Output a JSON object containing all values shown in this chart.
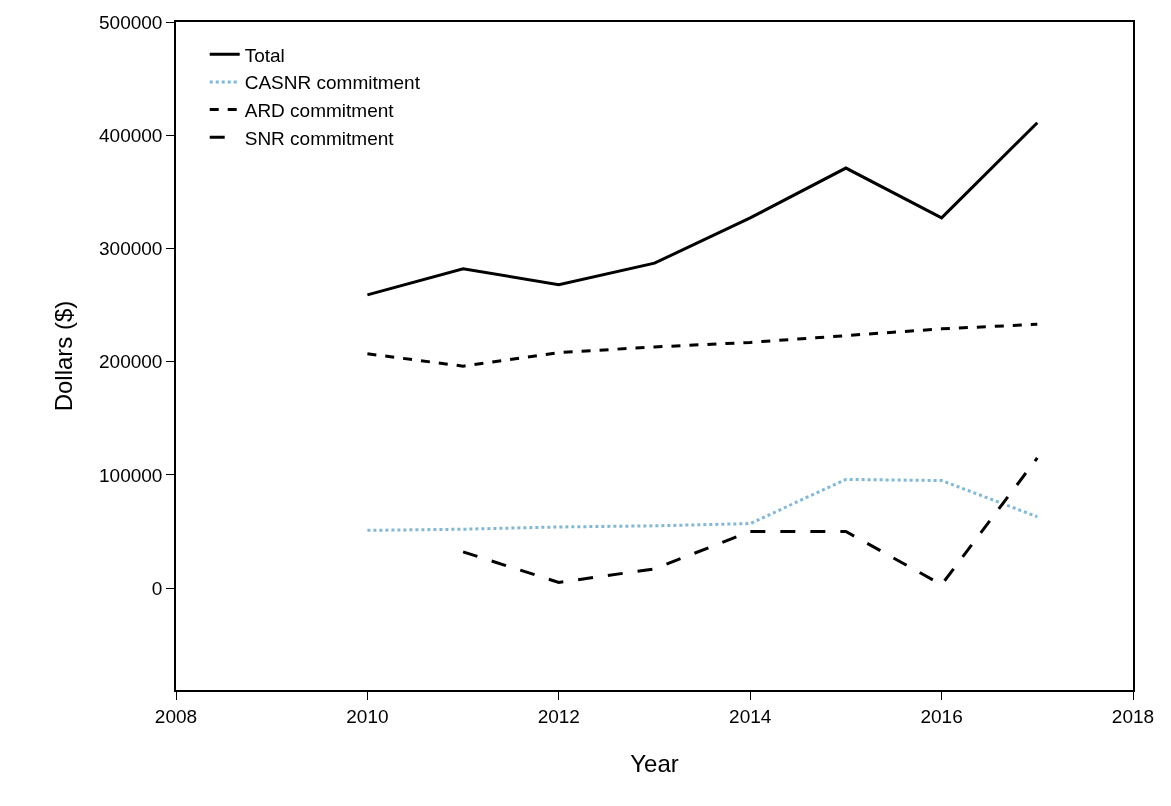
{
  "chart_data": {
    "type": "line",
    "xlabel": "Year",
    "ylabel": "Dollars ($)",
    "x": [
      2010,
      2011,
      2012,
      2013,
      2014,
      2015,
      2016,
      2017
    ],
    "series": [
      {
        "name": "Total",
        "color": "#000000",
        "line_style": "solid",
        "values": [
          259000,
          282000,
          268000,
          287000,
          327000,
          371000,
          327000,
          411000
        ]
      },
      {
        "name": "CASNR commitment",
        "color": "#7fb8d8",
        "line_style": "dotted",
        "values": [
          51000,
          52000,
          54000,
          55000,
          57000,
          96000,
          95000,
          63000
        ]
      },
      {
        "name": "ARD commitment",
        "color": "#000000",
        "line_style": "dashed",
        "values": [
          207000,
          196000,
          208000,
          213000,
          217000,
          223000,
          229000,
          233000
        ]
      },
      {
        "name": "SNR commitment",
        "color": "#000000",
        "line_style": "longdash",
        "values": [
          null,
          32000,
          5000,
          17000,
          50000,
          50000,
          3000,
          115000
        ]
      }
    ],
    "xlim": [
      2008,
      2018
    ],
    "xticks": [
      2008,
      2010,
      2012,
      2014,
      2016,
      2018
    ],
    "ylim": [
      -90000,
      500000
    ],
    "yticks": [
      0,
      100000,
      200000,
      300000,
      400000,
      500000
    ],
    "legend": "top left",
    "marker": "none"
  }
}
